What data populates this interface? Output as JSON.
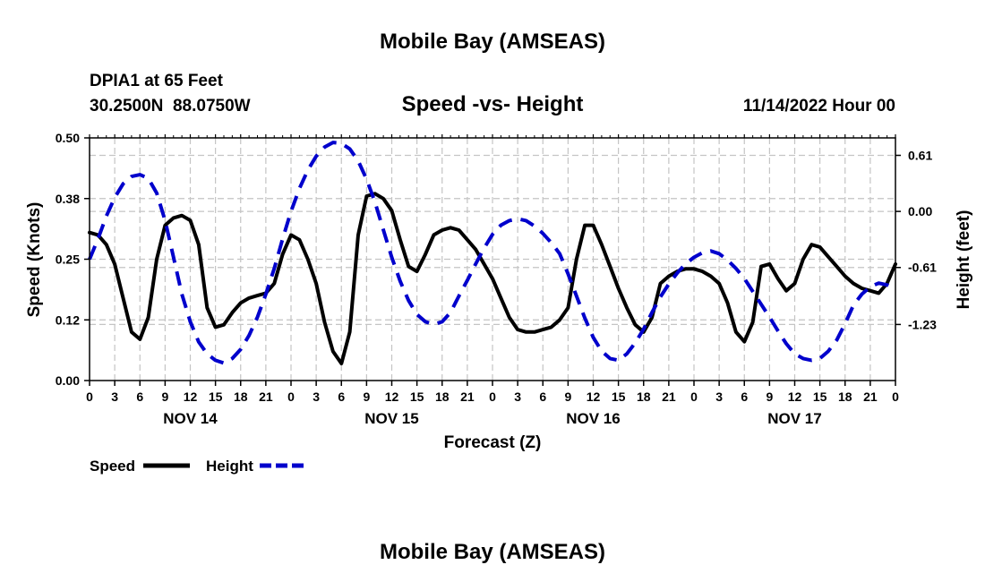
{
  "chart_data": {
    "type": "line",
    "title": "Mobile Bay (AMSEAS)",
    "footer_title": "Mobile Bay (AMSEAS)",
    "station": "DPIA1 at 65 Feet",
    "location": "30.2500N  88.0750W",
    "subtitle": "Speed -vs- Height",
    "timestamp": "11/14/2022 Hour 00",
    "xlabel": "Forecast (Z)",
    "ylabel_left": "Speed (Knots)",
    "ylabel_right": "Height (feet)",
    "x_range_hours": [
      0,
      96
    ],
    "x_tick_labels": [
      "0",
      "3",
      "6",
      "9",
      "12",
      "15",
      "18",
      "21",
      "0",
      "3",
      "6",
      "9",
      "12",
      "15",
      "18",
      "21",
      "0",
      "3",
      "6",
      "9",
      "12",
      "15",
      "18",
      "21",
      "0",
      "3",
      "6",
      "9",
      "12",
      "15",
      "18",
      "21",
      "0"
    ],
    "day_labels": [
      {
        "hour": 12,
        "label": "NOV 14"
      },
      {
        "hour": 36,
        "label": "NOV 15"
      },
      {
        "hour": 60,
        "label": "NOV 16"
      },
      {
        "hour": 84,
        "label": "NOV 17"
      }
    ],
    "ylim_left": [
      0,
      0.5
    ],
    "left_ticks": [
      {
        "value": 0.0,
        "label": "0.00"
      },
      {
        "value": 0.125,
        "label": "0.12"
      },
      {
        "value": 0.25,
        "label": "0.25"
      },
      {
        "value": 0.375,
        "label": "0.38"
      },
      {
        "value": 0.5,
        "label": "0.50"
      }
    ],
    "ylim_right": [
      -1.84,
      0.8
    ],
    "right_ticks": [
      {
        "value": 0.61,
        "label": "0.61"
      },
      {
        "value": 0.0,
        "label": "0.00"
      },
      {
        "value": -0.61,
        "label": "-0.61"
      },
      {
        "value": -1.23,
        "label": "-1.23"
      }
    ],
    "grid": true,
    "legend": {
      "position": "bottom-left"
    },
    "series": [
      {
        "name": "Speed",
        "axis": "left",
        "color": "#000000",
        "dash": "solid",
        "points": [
          [
            0,
            0.305
          ],
          [
            1,
            0.3
          ],
          [
            2,
            0.28
          ],
          [
            3,
            0.24
          ],
          [
            4,
            0.17
          ],
          [
            5,
            0.1
          ],
          [
            6,
            0.085
          ],
          [
            7,
            0.13
          ],
          [
            8,
            0.25
          ],
          [
            9,
            0.32
          ],
          [
            10,
            0.335
          ],
          [
            11,
            0.34
          ],
          [
            12,
            0.33
          ],
          [
            13,
            0.28
          ],
          [
            14,
            0.15
          ],
          [
            15,
            0.11
          ],
          [
            16,
            0.115
          ],
          [
            17,
            0.14
          ],
          [
            18,
            0.16
          ],
          [
            19,
            0.17
          ],
          [
            20,
            0.175
          ],
          [
            21,
            0.18
          ],
          [
            22,
            0.2
          ],
          [
            23,
            0.26
          ],
          [
            24,
            0.3
          ],
          [
            25,
            0.29
          ],
          [
            26,
            0.25
          ],
          [
            27,
            0.2
          ],
          [
            28,
            0.12
          ],
          [
            29,
            0.06
          ],
          [
            30,
            0.035
          ],
          [
            31,
            0.1
          ],
          [
            32,
            0.3
          ],
          [
            33,
            0.38
          ],
          [
            34,
            0.385
          ],
          [
            35,
            0.375
          ],
          [
            36,
            0.35
          ],
          [
            37,
            0.29
          ],
          [
            38,
            0.235
          ],
          [
            39,
            0.225
          ],
          [
            40,
            0.26
          ],
          [
            41,
            0.3
          ],
          [
            42,
            0.31
          ],
          [
            43,
            0.315
          ],
          [
            44,
            0.31
          ],
          [
            45,
            0.29
          ],
          [
            46,
            0.27
          ],
          [
            47,
            0.24
          ],
          [
            48,
            0.21
          ],
          [
            49,
            0.17
          ],
          [
            50,
            0.13
          ],
          [
            51,
            0.105
          ],
          [
            52,
            0.1
          ],
          [
            53,
            0.1
          ],
          [
            54,
            0.105
          ],
          [
            55,
            0.11
          ],
          [
            56,
            0.125
          ],
          [
            57,
            0.15
          ],
          [
            58,
            0.25
          ],
          [
            59,
            0.32
          ],
          [
            60,
            0.32
          ],
          [
            61,
            0.28
          ],
          [
            62,
            0.235
          ],
          [
            63,
            0.19
          ],
          [
            64,
            0.15
          ],
          [
            65,
            0.115
          ],
          [
            66,
            0.1
          ],
          [
            67,
            0.13
          ],
          [
            68,
            0.2
          ],
          [
            69,
            0.215
          ],
          [
            70,
            0.225
          ],
          [
            71,
            0.23
          ],
          [
            72,
            0.23
          ],
          [
            73,
            0.225
          ],
          [
            74,
            0.215
          ],
          [
            75,
            0.2
          ],
          [
            76,
            0.16
          ],
          [
            77,
            0.1
          ],
          [
            78,
            0.08
          ],
          [
            79,
            0.12
          ],
          [
            80,
            0.235
          ],
          [
            81,
            0.24
          ],
          [
            82,
            0.21
          ],
          [
            83,
            0.185
          ],
          [
            84,
            0.2
          ],
          [
            85,
            0.25
          ],
          [
            86,
            0.28
          ],
          [
            87,
            0.275
          ],
          [
            88,
            0.255
          ],
          [
            89,
            0.235
          ],
          [
            90,
            0.215
          ],
          [
            91,
            0.2
          ],
          [
            92,
            0.19
          ],
          [
            93,
            0.185
          ],
          [
            94,
            0.18
          ],
          [
            95,
            0.2
          ],
          [
            96,
            0.24
          ]
        ]
      },
      {
        "name": "Height",
        "axis": "right",
        "color": "#0000cc",
        "dash": "dashed",
        "points": [
          [
            0,
            -0.52
          ],
          [
            1,
            -0.3
          ],
          [
            2,
            -0.05
          ],
          [
            3,
            0.15
          ],
          [
            4,
            0.3
          ],
          [
            5,
            0.38
          ],
          [
            6,
            0.4
          ],
          [
            7,
            0.36
          ],
          [
            8,
            0.2
          ],
          [
            9,
            -0.1
          ],
          [
            10,
            -0.5
          ],
          [
            11,
            -0.9
          ],
          [
            12,
            -1.2
          ],
          [
            13,
            -1.42
          ],
          [
            14,
            -1.55
          ],
          [
            15,
            -1.62
          ],
          [
            16,
            -1.65
          ],
          [
            17,
            -1.6
          ],
          [
            18,
            -1.5
          ],
          [
            19,
            -1.35
          ],
          [
            20,
            -1.15
          ],
          [
            21,
            -0.9
          ],
          [
            22,
            -0.62
          ],
          [
            23,
            -0.3
          ],
          [
            24,
            -0.0
          ],
          [
            25,
            0.25
          ],
          [
            26,
            0.45
          ],
          [
            27,
            0.6
          ],
          [
            28,
            0.7
          ],
          [
            29,
            0.75
          ],
          [
            30,
            0.74
          ],
          [
            31,
            0.68
          ],
          [
            32,
            0.55
          ],
          [
            33,
            0.35
          ],
          [
            34,
            0.1
          ],
          [
            35,
            -0.2
          ],
          [
            36,
            -0.5
          ],
          [
            37,
            -0.76
          ],
          [
            38,
            -0.97
          ],
          [
            39,
            -1.12
          ],
          [
            40,
            -1.2
          ],
          [
            41,
            -1.23
          ],
          [
            42,
            -1.2
          ],
          [
            43,
            -1.1
          ],
          [
            44,
            -0.92
          ],
          [
            45,
            -0.75
          ],
          [
            46,
            -0.57
          ],
          [
            47,
            -0.4
          ],
          [
            48,
            -0.25
          ],
          [
            49,
            -0.15
          ],
          [
            50,
            -0.1
          ],
          [
            51,
            -0.08
          ],
          [
            52,
            -0.1
          ],
          [
            53,
            -0.16
          ],
          [
            54,
            -0.24
          ],
          [
            55,
            -0.34
          ],
          [
            56,
            -0.46
          ],
          [
            57,
            -0.68
          ],
          [
            58,
            -0.92
          ],
          [
            59,
            -1.16
          ],
          [
            60,
            -1.37
          ],
          [
            61,
            -1.52
          ],
          [
            62,
            -1.6
          ],
          [
            63,
            -1.62
          ],
          [
            64,
            -1.55
          ],
          [
            65,
            -1.43
          ],
          [
            66,
            -1.28
          ],
          [
            67,
            -1.1
          ],
          [
            68,
            -0.93
          ],
          [
            69,
            -0.79
          ],
          [
            70,
            -0.67
          ],
          [
            71,
            -0.57
          ],
          [
            72,
            -0.5
          ],
          [
            73,
            -0.45
          ],
          [
            74,
            -0.43
          ],
          [
            75,
            -0.46
          ],
          [
            76,
            -0.53
          ],
          [
            77,
            -0.62
          ],
          [
            78,
            -0.73
          ],
          [
            79,
            -0.87
          ],
          [
            80,
            -1.01
          ],
          [
            81,
            -1.15
          ],
          [
            82,
            -1.3
          ],
          [
            83,
            -1.44
          ],
          [
            84,
            -1.55
          ],
          [
            85,
            -1.6
          ],
          [
            86,
            -1.62
          ],
          [
            87,
            -1.6
          ],
          [
            88,
            -1.52
          ],
          [
            89,
            -1.4
          ],
          [
            90,
            -1.22
          ],
          [
            91,
            -1.02
          ],
          [
            92,
            -0.9
          ],
          [
            93,
            -0.82
          ],
          [
            94,
            -0.78
          ],
          [
            95,
            -0.8
          ],
          [
            96,
            -0.85
          ]
        ]
      }
    ]
  }
}
